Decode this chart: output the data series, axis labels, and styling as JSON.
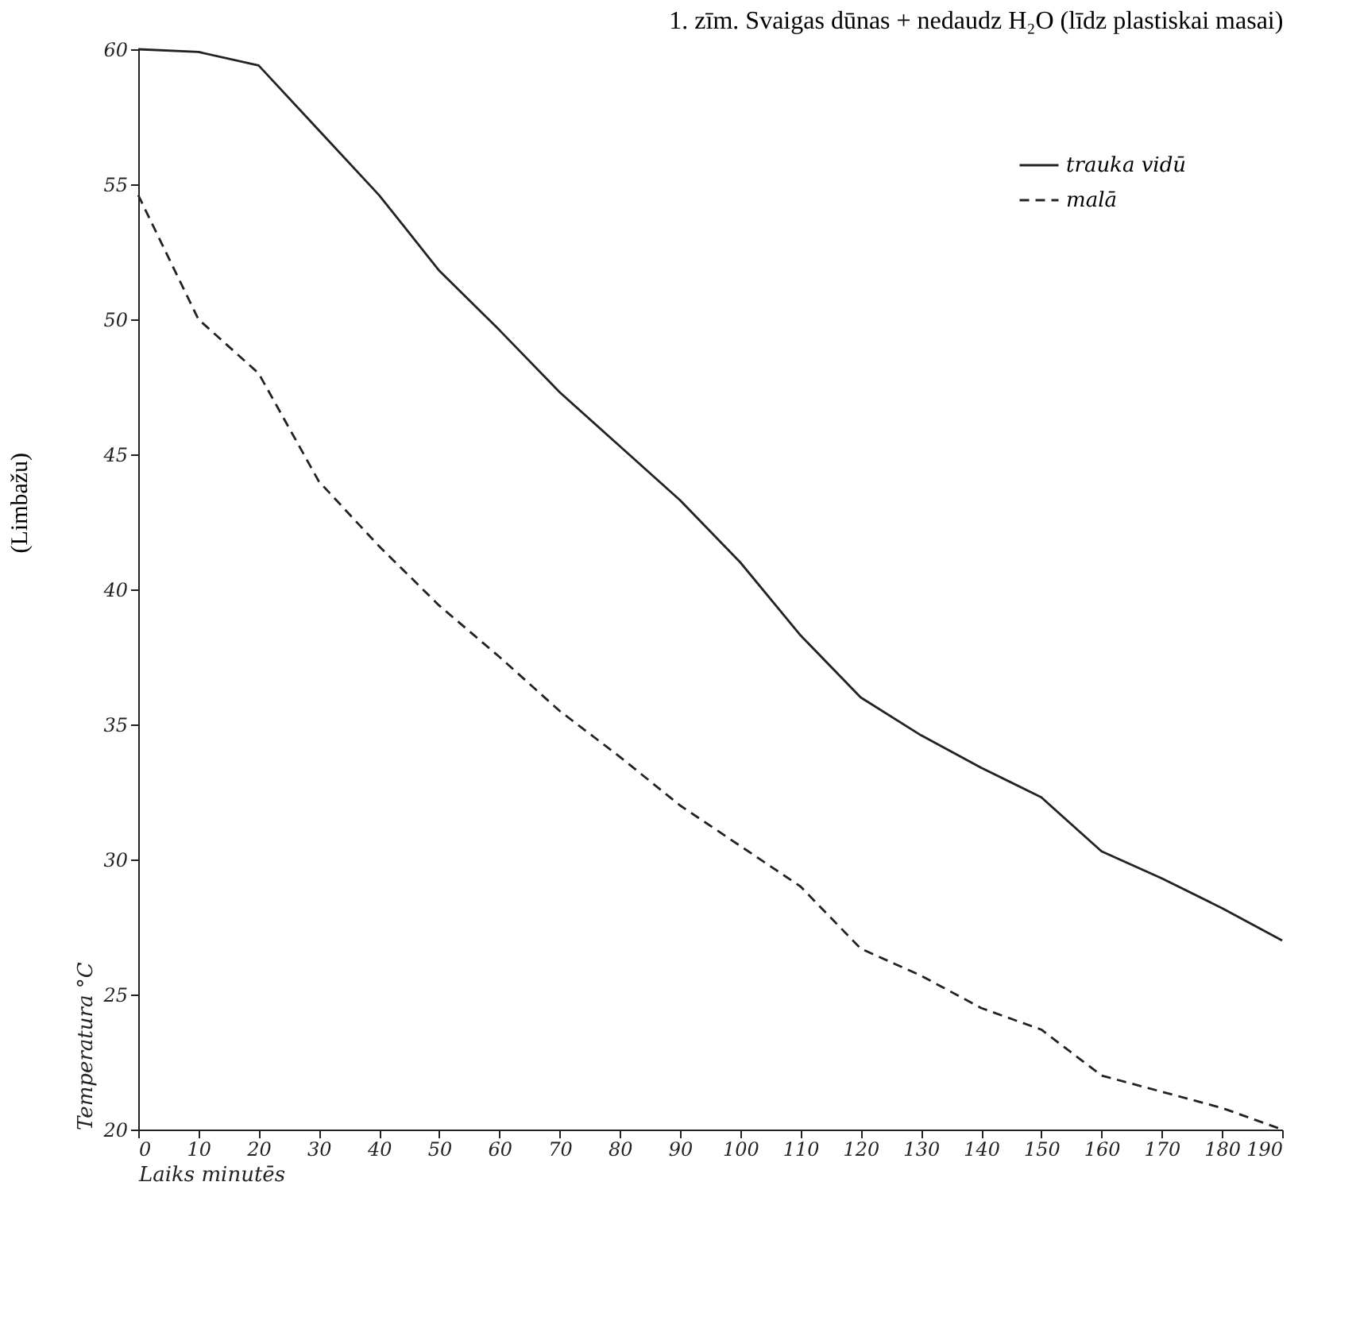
{
  "chart_data": {
    "type": "line",
    "title": "1. zīm. Svaigas dūnas + nedaudz H₂O (līdz plastiskai masai)",
    "xlabel": "Laiks minutēs",
    "ylabel": "Temperatura °C",
    "annotations": [
      "(Limbažu)"
    ],
    "x": [
      0,
      10,
      20,
      30,
      40,
      50,
      60,
      70,
      80,
      90,
      100,
      110,
      120,
      130,
      140,
      150,
      160,
      170,
      180,
      190
    ],
    "series": [
      {
        "name": "trauka vidū",
        "color": "#222222",
        "line_style": "solid",
        "values": [
          60,
          59.9,
          59.4,
          57,
          54.6,
          51.8,
          49.6,
          47.3,
          45.3,
          43.3,
          41,
          38.3,
          36,
          34.6,
          33.4,
          32.3,
          30.3,
          29.3,
          28.2,
          27
        ]
      },
      {
        "name": "malā",
        "color": "#222222",
        "line_style": "dashed",
        "values": [
          54.6,
          50,
          48,
          44,
          41.6,
          39.4,
          37.5,
          35.5,
          33.8,
          32,
          30.5,
          29,
          26.7,
          25.7,
          24.5,
          23.7,
          22,
          21.4,
          20.8,
          20
        ]
      }
    ],
    "xlim": [
      0,
      190
    ],
    "xticks": [
      0,
      10,
      20,
      30,
      40,
      50,
      60,
      70,
      80,
      90,
      100,
      110,
      120,
      130,
      140,
      150,
      160,
      170,
      180,
      190
    ],
    "ylim": [
      20,
      60
    ],
    "yticks": [
      20,
      25,
      30,
      35,
      40,
      45,
      50,
      55,
      60
    ],
    "grid": false,
    "legend": "top right"
  }
}
